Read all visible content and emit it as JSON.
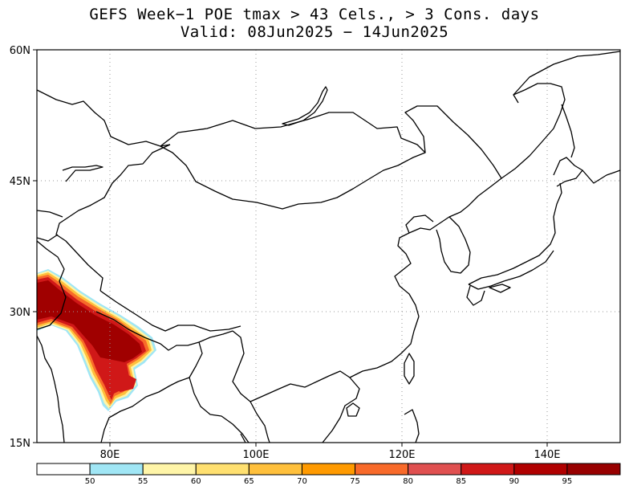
{
  "title": {
    "line1": "GEFS Week−1 POE tmax > 43 Cels., > 3 Cons. days",
    "line2": "Valid: 08Jun2025 − 14Jun2025"
  },
  "map": {
    "lon_range": [
      70,
      150
    ],
    "lat_range": [
      15,
      60
    ],
    "lat_labels": [
      {
        "value": 60,
        "label": "60N"
      },
      {
        "value": 45,
        "label": "45N"
      },
      {
        "value": 30,
        "label": "30N"
      },
      {
        "value": 15,
        "label": "15N"
      }
    ],
    "lon_labels": [
      {
        "value": 80,
        "label": "80E"
      },
      {
        "value": 100,
        "label": "100E"
      },
      {
        "value": 120,
        "label": "120E"
      },
      {
        "value": 140,
        "label": "140E"
      }
    ],
    "gridlines": "dotted",
    "shaded_region": "Northern India and Pakistan, highest probabilities (90-100) along the Indo-Gangetic plain"
  },
  "colorbar": {
    "labels": [
      "50",
      "55",
      "60",
      "65",
      "70",
      "75",
      "80",
      "85",
      "90",
      "95"
    ],
    "colors": [
      "#ffffff",
      "#a0e6f5",
      "#fff5a8",
      "#ffe070",
      "#ffc03c",
      "#ff9a00",
      "#f86a2a",
      "#e05050",
      "#d01818",
      "#b00000",
      "#980000"
    ]
  }
}
